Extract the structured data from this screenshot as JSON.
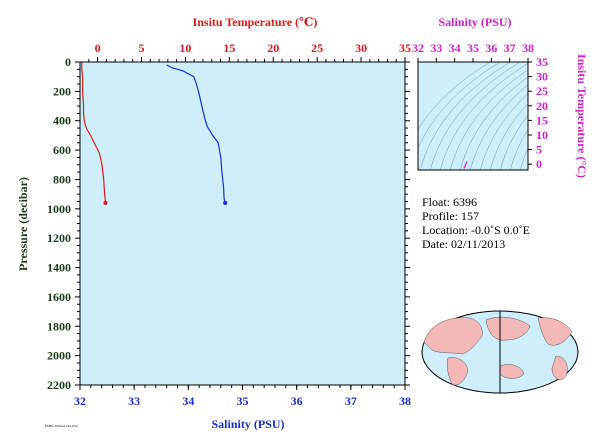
{
  "colors": {
    "temperature": "#d81b1b",
    "salinity": "#1a2fd0",
    "axis_text": "#1a3a1a",
    "ts_axis": "#cc22cc",
    "plot_bg": "#cdeefa",
    "land": "#f4b8b8",
    "ocean": "#cdeefa"
  },
  "labels": {
    "top_axis_title": "Insitu Temperature (℃)",
    "bottom_axis_title": "Salinity (PSU)",
    "left_axis_title": "Pressure (decibar)",
    "ts_top_title": "Salinity (PSU)",
    "ts_right_title": "Insitu Temperature (°C)",
    "footer_code": "PMEL/NOAA 2013/02"
  },
  "info": {
    "float": "Float:  6396",
    "profile": "Profile:  157",
    "location": "Location:  -0.0˚S   0.0˚E",
    "date": "Date:  02/11/2013"
  },
  "chart_data": [
    {
      "type": "line",
      "name": "profile",
      "ylim": [
        2200,
        0
      ],
      "yticks": [
        0,
        200,
        400,
        600,
        800,
        1000,
        1200,
        1400,
        1600,
        1800,
        2000,
        2200
      ],
      "temperature_axis": {
        "xlim": [
          -2,
          35
        ],
        "ticks": [
          0,
          5,
          10,
          15,
          20,
          25,
          30,
          35
        ]
      },
      "salinity_axis": {
        "xlim": [
          32,
          38
        ],
        "ticks": [
          32,
          33,
          34,
          35,
          36,
          37,
          38
        ]
      },
      "temperature": {
        "x": [
          -1.8,
          -1.8,
          -1.7,
          -1.7,
          -1.6,
          -1.6,
          -1.5,
          -1.4,
          -1.2,
          -0.8,
          -0.3,
          0.2,
          0.5,
          0.7,
          0.8,
          0.9,
          0.9
        ],
        "y": [
          0,
          50,
          100,
          200,
          300,
          350,
          400,
          430,
          460,
          500,
          560,
          620,
          700,
          800,
          900,
          950,
          960
        ]
      },
      "salinity": {
        "x": [
          33.6,
          33.7,
          33.9,
          34.1,
          34.15,
          34.2,
          34.25,
          34.3,
          34.35,
          34.45,
          34.55,
          34.6,
          34.62,
          34.65,
          34.66,
          34.68
        ],
        "y": [
          20,
          40,
          60,
          100,
          150,
          220,
          300,
          380,
          440,
          500,
          550,
          650,
          750,
          850,
          930,
          960
        ]
      }
    },
    {
      "type": "scatter",
      "name": "ts-diagram",
      "xlim": [
        32,
        38
      ],
      "ylim": [
        -2,
        35
      ],
      "xticks": [
        32,
        33,
        34,
        35,
        36,
        37,
        38
      ],
      "yticks": [
        0,
        5,
        10,
        15,
        20,
        25,
        30,
        35
      ],
      "points": {
        "x": [
          34.5,
          34.55,
          34.6,
          34.68
        ],
        "y": [
          -1.5,
          -1.0,
          0.0,
          0.9
        ]
      }
    }
  ]
}
